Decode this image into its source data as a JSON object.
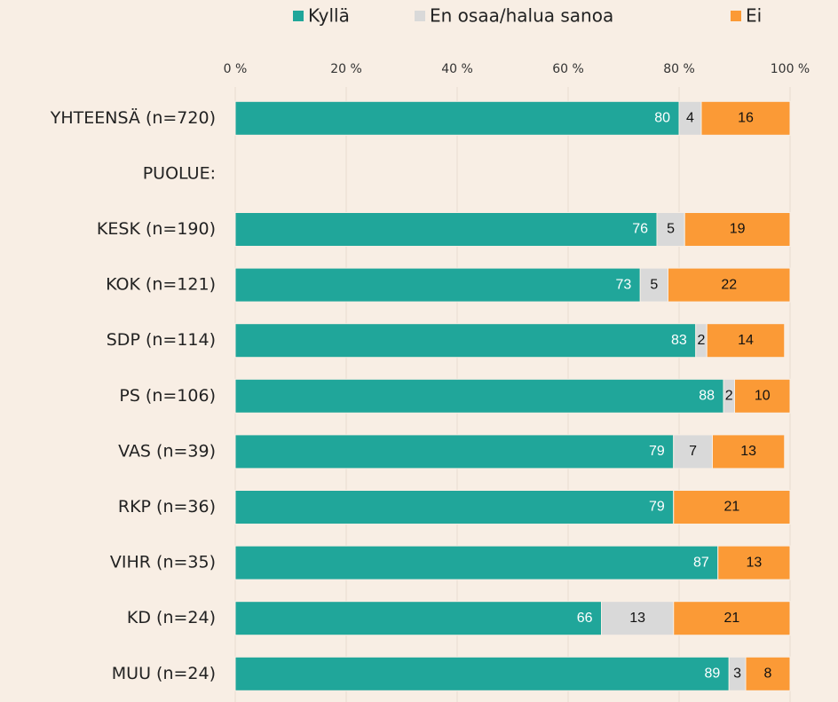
{
  "chart_data": {
    "type": "stacked-bar-horizontal",
    "categories": [
      "YHTEENSÄ (n=720)",
      "PUOLUE:",
      "KESK (n=190)",
      "KOK (n=121)",
      "SDP (n=114)",
      "PS (n=106)",
      "VAS (n=39)",
      "RKP (n=36)",
      "VIHR (n=35)",
      "KD (n=24)",
      "MUU (n=24)"
    ],
    "series": [
      {
        "name": "Kyllä",
        "color": "#20a69a",
        "values": [
          80,
          null,
          76,
          73,
          83,
          88,
          79,
          79,
          87,
          66,
          89
        ]
      },
      {
        "name": "En osaa/halua sanoa",
        "color": "#d9d9d9",
        "values": [
          4,
          null,
          5,
          5,
          2,
          2,
          7,
          null,
          null,
          13,
          3
        ]
      },
      {
        "name": "Ei",
        "color": "#fb9a36",
        "values": [
          16,
          null,
          19,
          22,
          14,
          10,
          13,
          21,
          13,
          21,
          8
        ]
      }
    ],
    "xlim": [
      0,
      100
    ],
    "xticks": [
      {
        "value": 0,
        "label": "0 %"
      },
      {
        "value": 20,
        "label": "20 %"
      },
      {
        "value": 40,
        "label": "40 %"
      },
      {
        "value": 60,
        "label": "60 %"
      },
      {
        "value": 80,
        "label": "80 %"
      },
      {
        "value": 100,
        "label": "100 %"
      }
    ],
    "grid": true,
    "legend": "top"
  }
}
